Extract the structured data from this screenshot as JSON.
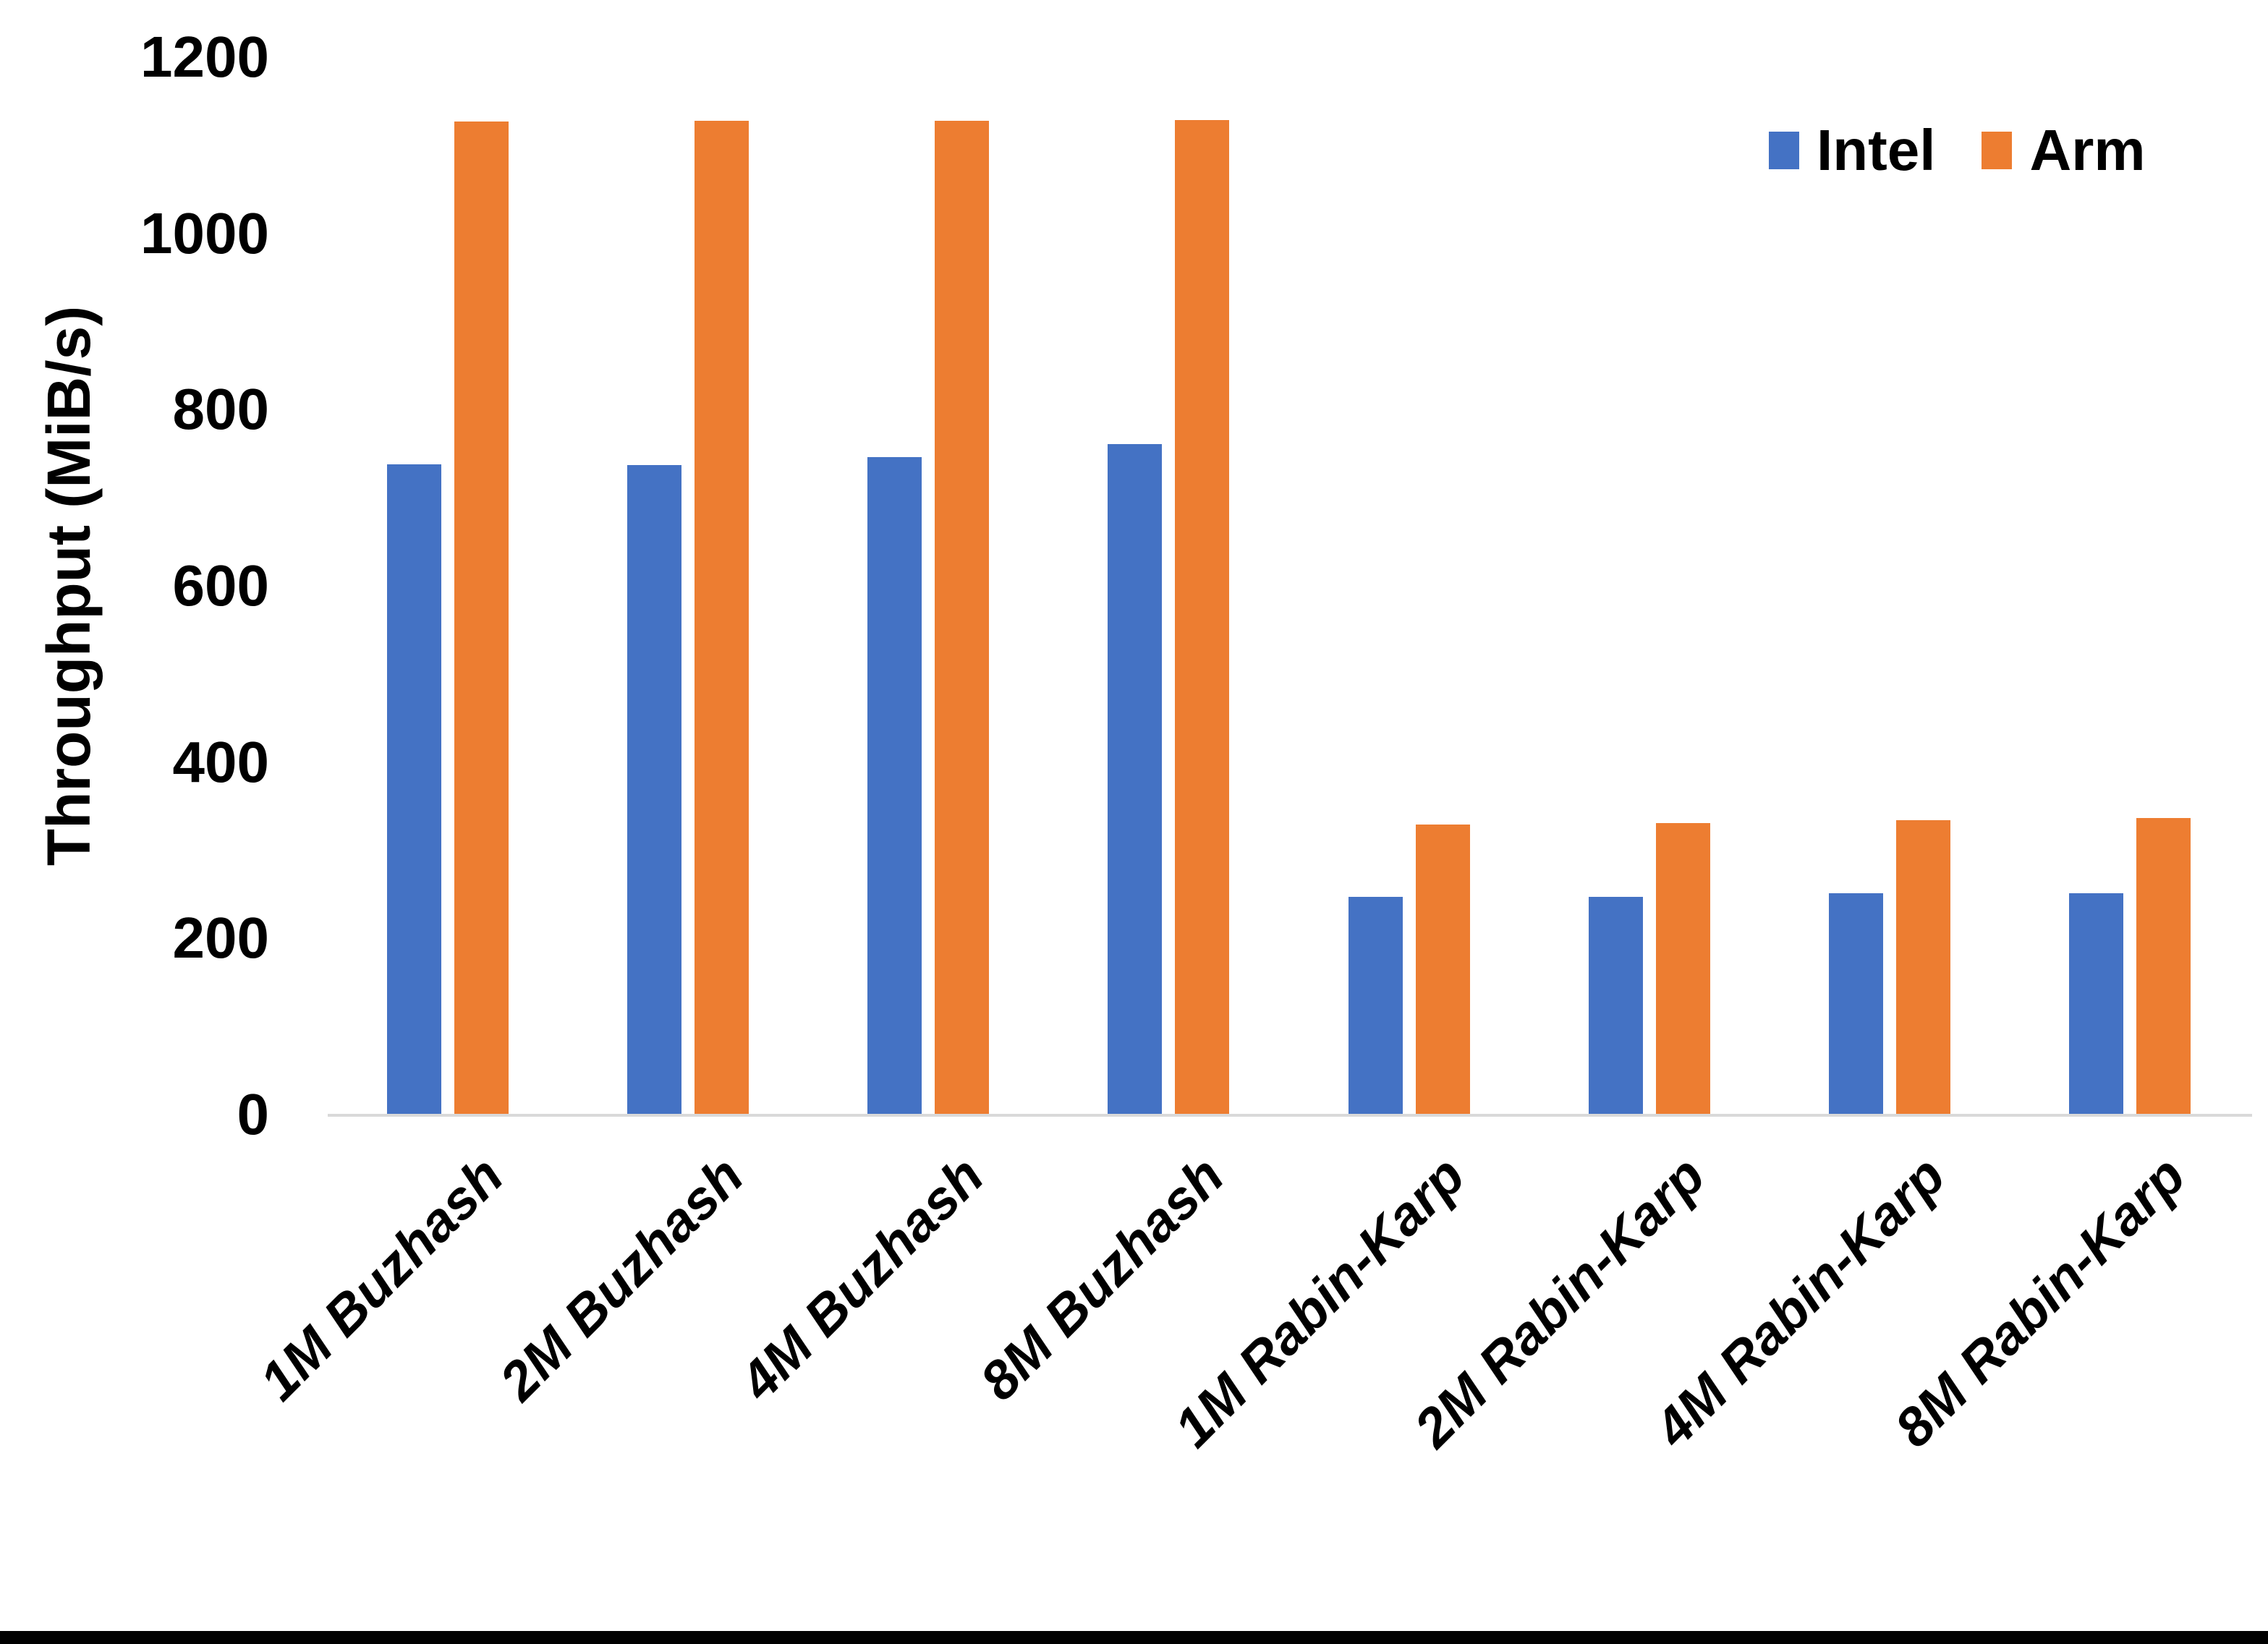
{
  "chart_data": {
    "type": "bar",
    "title": "",
    "xlabel": "",
    "ylabel": "Throughput (MiB/s)",
    "ylim": [
      0,
      1200
    ],
    "yticks": [
      0,
      200,
      400,
      600,
      800,
      1000,
      1200
    ],
    "grid": false,
    "legend_position": "top-right",
    "categories": [
      "1M Buzhash",
      "2M Buzhash",
      "4M Buzhash",
      "8M Buzhash",
      "1M Rabin-Karp",
      "2M Rabin-Karp",
      "4M Rabin-Karp",
      "8M Rabin-Karp"
    ],
    "series": [
      {
        "name": "Intel",
        "color": "#4472C4",
        "values": [
          737,
          736,
          745,
          760,
          246,
          246,
          250,
          250
        ]
      },
      {
        "name": "Arm",
        "color": "#ED7D31",
        "values": [
          1126,
          1127,
          1127,
          1128,
          328,
          330,
          333,
          336
        ]
      }
    ]
  },
  "colors": {
    "axis_line": "#D9D9D9",
    "text": "#000000",
    "background": "#FFFFFF",
    "bottom_bar": "#000000"
  }
}
